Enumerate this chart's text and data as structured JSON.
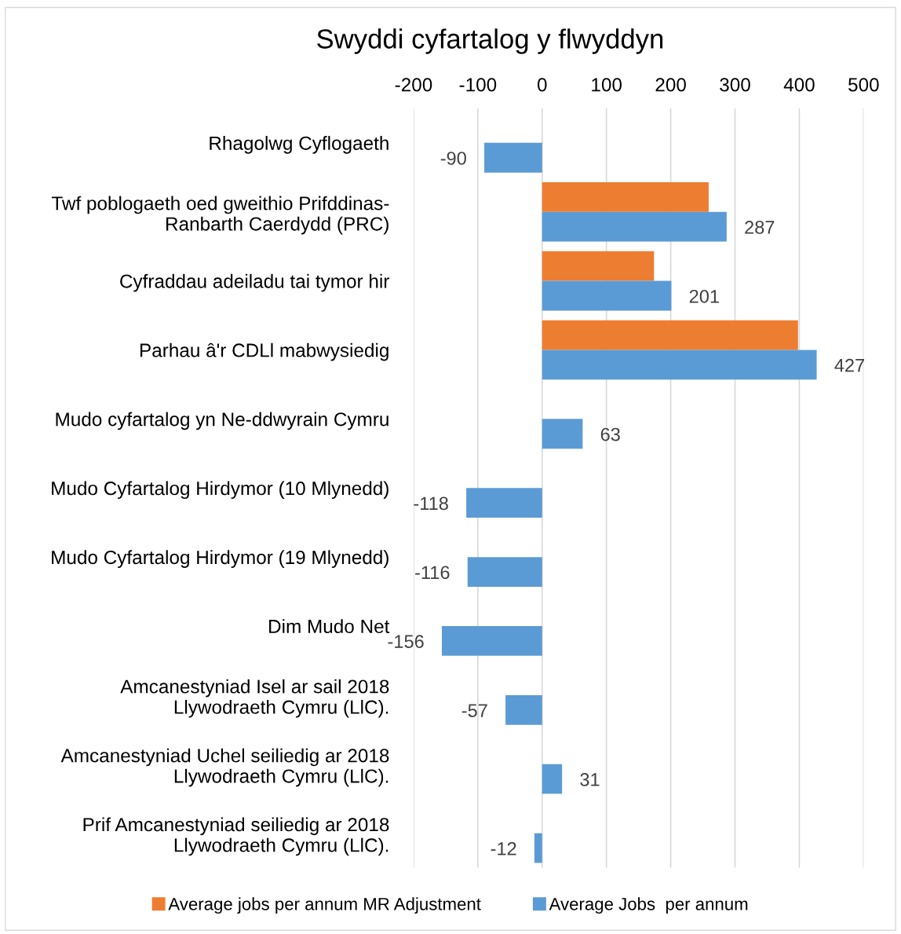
{
  "chart_data": {
    "type": "bar",
    "orientation": "horizontal",
    "title": "Swyddi cyfartalog y flwyddyn",
    "categories": [
      "Rhagolwg Cyflogaeth",
      "Twf poblogaeth oed gweithio Prifddinas-\nRanbarth Caerdydd (PRC)",
      "Cyfraddau adeiladu tai tymor hir",
      "Parhau â'r CDLl mabwysiedig",
      "Mudo cyfartalog yn Ne-ddwyrain Cymru",
      "Mudo Cyfartalog Hirdymor (10 Mlynedd)",
      "Mudo Cyfartalog Hirdymor (19 Mlynedd)",
      "Dim Mudo Net",
      "Amcanestyniad Isel ar sail 2018\nLlywodraeth Cymru (LlC).",
      "Amcanestyniad Uchel seiliedig ar 2018\nLlywodraeth Cymru (LlC).",
      "Prif Amcanestyniad seiliedig ar 2018\nLlywodraeth Cymru (LlC)."
    ],
    "series": [
      {
        "name": "Average jobs per annum MR Adjustment",
        "color": "#ed7d31",
        "values": [
          null,
          259,
          174,
          398,
          null,
          null,
          null,
          null,
          null,
          null,
          null
        ]
      },
      {
        "name": "Average Jobs  per annum",
        "color": "#5b9bd5",
        "values": [
          -90,
          287,
          201,
          427,
          63,
          -118,
          -116,
          -156,
          -57,
          31,
          -12
        ],
        "value_labels": [
          "-90",
          "287",
          "201",
          "427",
          "63",
          "-118",
          "-116",
          "-156",
          "-57",
          "31",
          "-12"
        ]
      }
    ],
    "xlim": [
      -200,
      500
    ],
    "xticks": [
      -200,
      -100,
      0,
      100,
      200,
      300,
      400,
      500
    ],
    "grid": "x",
    "legend": "bottom"
  }
}
